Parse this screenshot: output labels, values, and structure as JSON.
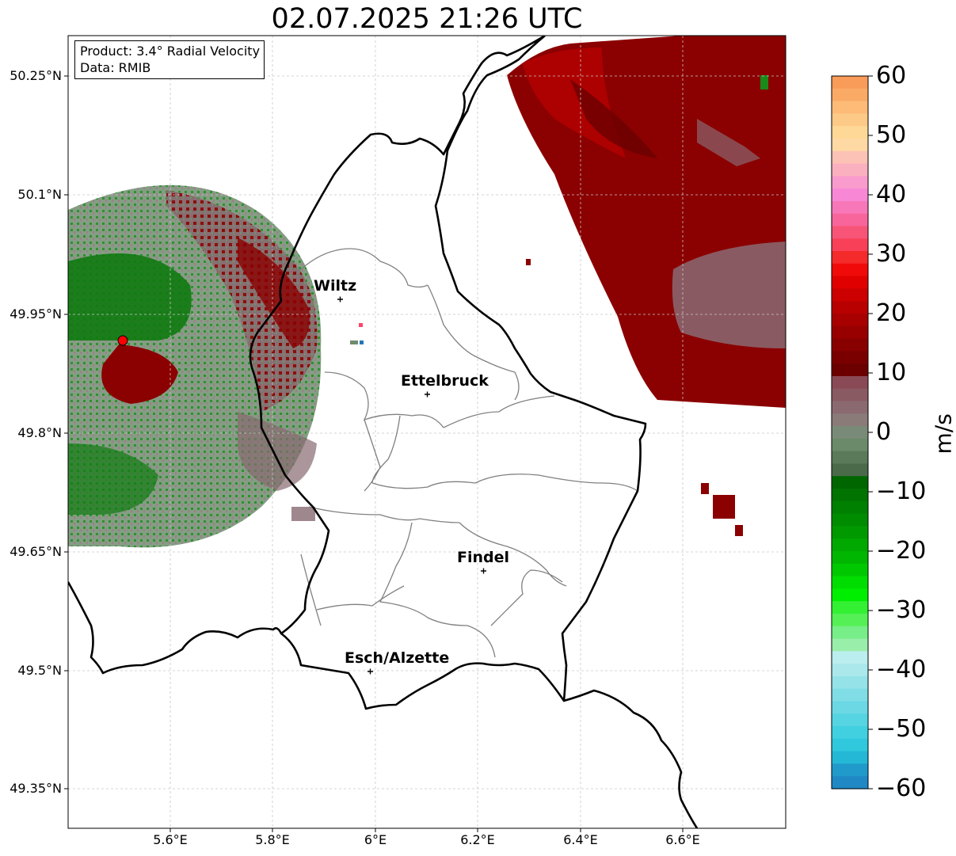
{
  "title": "02.07.2025 21:26 UTC",
  "info_box": {
    "product_line": "Product: 3.4° Radial Velocity",
    "data_line": "Data: RMIB"
  },
  "axes": {
    "lon_ticks": [
      "5.6°E",
      "5.8°E",
      "6°E",
      "6.2°E",
      "6.4°E",
      "6.6°E"
    ],
    "lat_ticks": [
      "50.25°N",
      "50.1°N",
      "49.95°N",
      "49.8°N",
      "49.65°N",
      "49.5°N",
      "49.35°N"
    ]
  },
  "colorbar": {
    "unit": "m/s",
    "ticks": [
      "60",
      "50",
      "40",
      "30",
      "20",
      "10",
      "0",
      "−10",
      "−20",
      "−30",
      "−40",
      "−50",
      "−60"
    ],
    "min": -60,
    "max": 60
  },
  "cities": [
    {
      "name": "Wiltz"
    },
    {
      "name": "Ettelbruck"
    },
    {
      "name": "Findel"
    },
    {
      "name": "Esch/Alzette"
    }
  ],
  "colors": {
    "radar_site": "#ff0000",
    "border": "#000000",
    "canton_lines": "#808080",
    "grid": "#c8c8c8"
  }
}
